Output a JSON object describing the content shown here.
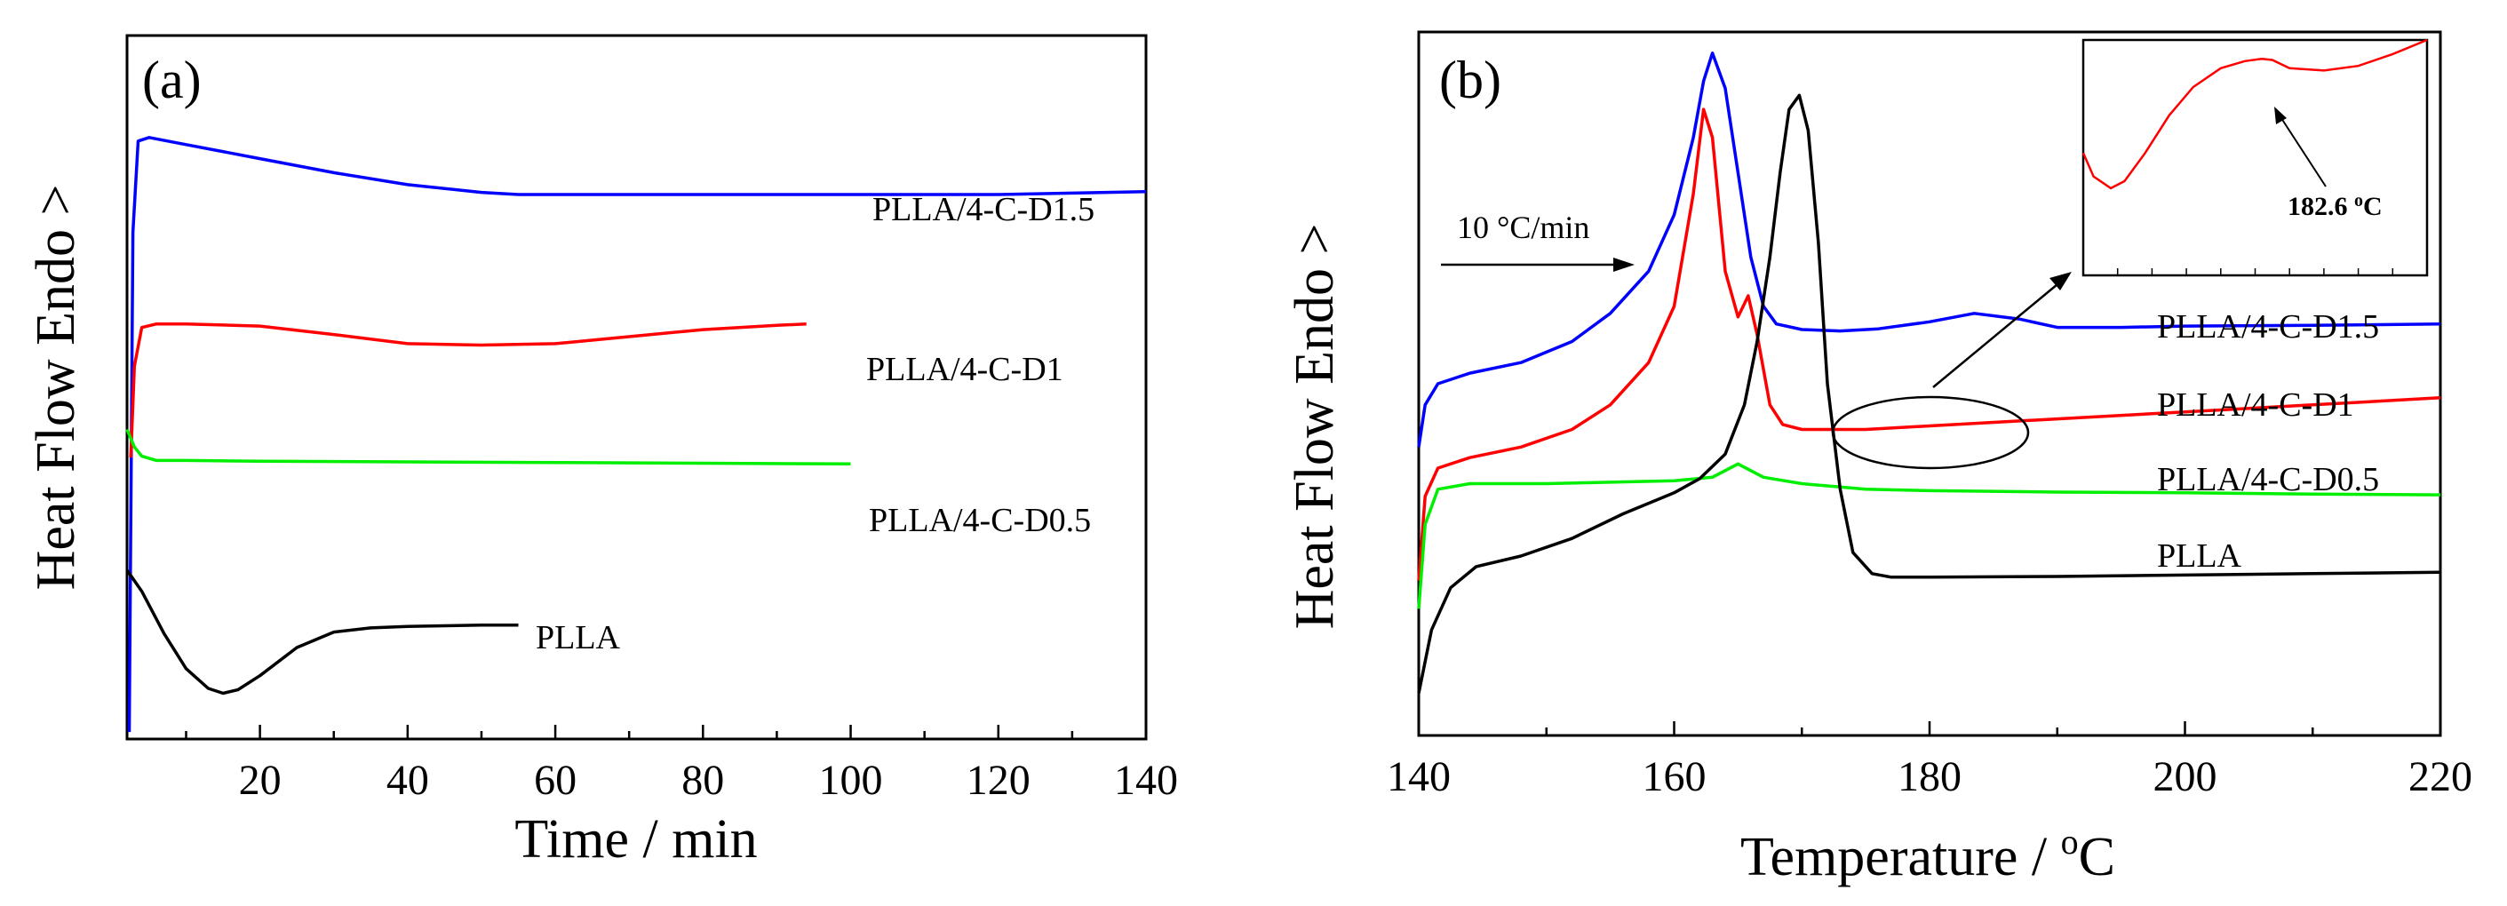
{
  "chart_data": [
    {
      "type": "line",
      "panel_label": "(a)",
      "xlabel": "Time / min",
      "ylabel": "Heat Flow Endo >",
      "xlim": [
        2,
        140
      ],
      "ylim": [
        0,
        100
      ],
      "xticks": [
        20,
        40,
        60,
        80,
        100,
        120,
        140
      ],
      "yticks_shown": false,
      "series": [
        {
          "name": "PLLA/4-C-D1.5",
          "color": "#0000ff",
          "x": [
            2.3,
            2.8,
            3.5,
            5,
            10,
            20,
            30,
            40,
            50,
            55,
            60,
            80,
            100,
            120,
            140
          ],
          "y": [
            1,
            72,
            85,
            85.5,
            84.5,
            82.5,
            80.5,
            78.8,
            77.7,
            77.4,
            77.4,
            77.4,
            77.4,
            77.4,
            77.8
          ]
        },
        {
          "name": "PLLA/4-C-D1",
          "color": "#ff0000",
          "x": [
            2.5,
            3,
            4,
            6,
            10,
            20,
            30,
            40,
            50,
            60,
            70,
            80,
            90,
            94
          ],
          "y": [
            40,
            53,
            58.5,
            59,
            59,
            58.7,
            57.5,
            56.2,
            56,
            56.2,
            57.2,
            58.2,
            58.8,
            59
          ]
        },
        {
          "name": "PLLA/4-C-D0.5",
          "color": "#00ee00",
          "x": [
            2,
            3,
            4,
            6,
            10,
            20,
            40,
            60,
            80,
            100
          ],
          "y": [
            44,
            41.5,
            40.2,
            39.6,
            39.6,
            39.5,
            39.4,
            39.3,
            39.2,
            39.1
          ]
        },
        {
          "name": "PLLA",
          "color": "#000000",
          "x": [
            2,
            4,
            7,
            10,
            13,
            15,
            17,
            20,
            25,
            30,
            35,
            40,
            45,
            50,
            55
          ],
          "y": [
            24,
            21,
            15,
            10,
            7.2,
            6.5,
            7,
            9,
            13,
            15.2,
            15.8,
            16,
            16.1,
            16.2,
            16.2
          ]
        }
      ],
      "labels": [
        "PLLA/4-C-D1.5",
        "PLLA/4-C-D1",
        "PLLA/4-C-D0.5",
        "PLLA"
      ]
    },
    {
      "type": "line",
      "panel_label": "(b)",
      "xlabel": "Temperature / ",
      "xlabel_unit_sup": "o",
      "xlabel_unit": "C",
      "ylabel": "Heat Flow Endo >",
      "xlim": [
        140,
        220
      ],
      "ylim": [
        0,
        100
      ],
      "xticks": [
        140,
        160,
        180,
        200,
        220
      ],
      "yticks_shown": false,
      "rate_annotation": "10 °C/min",
      "series": [
        {
          "name": "PLLA/4-C-D1.5",
          "color": "#0000ff",
          "x": [
            140,
            140.5,
            141.5,
            144,
            148,
            152,
            155,
            158,
            160,
            161.5,
            162.3,
            163,
            164,
            165,
            166,
            167,
            168,
            170,
            173,
            176,
            180,
            183.5,
            187,
            190,
            195,
            200,
            210,
            220
          ],
          "y": [
            41,
            47,
            50,
            51.5,
            53,
            56,
            60,
            66,
            74,
            85,
            93,
            97,
            92,
            80,
            68,
            61,
            58.5,
            57.7,
            57.5,
            57.8,
            58.8,
            60,
            59.2,
            58,
            58,
            58.2,
            58.3,
            58.5
          ]
        },
        {
          "name": "PLLA/4-C-D1",
          "color": "#ff0000",
          "x": [
            140,
            140.5,
            141.5,
            144,
            148,
            152,
            155,
            158,
            160,
            161.5,
            162.3,
            163,
            164,
            165,
            165.8,
            166.5,
            167.5,
            168.5,
            170,
            175,
            180,
            190,
            200,
            210,
            220
          ],
          "y": [
            22,
            34,
            38,
            39.5,
            41,
            43.5,
            47,
            53,
            61,
            77,
            89,
            85,
            66,
            59.5,
            62.5,
            57,
            47,
            44.2,
            43.5,
            43.5,
            44,
            45,
            46,
            47,
            48
          ]
        },
        {
          "name": "PLLA/4-C-D0.5",
          "color": "#00ee00",
          "x": [
            140,
            140.5,
            141.5,
            144,
            150,
            155,
            160,
            163,
            165,
            167,
            170,
            175,
            180,
            190,
            200,
            210,
            220
          ],
          "y": [
            18,
            30,
            35,
            35.8,
            35.8,
            36,
            36.2,
            36.7,
            38.6,
            36.7,
            35.8,
            35,
            34.8,
            34.6,
            34.5,
            34.3,
            34.2
          ]
        },
        {
          "name": "PLLA",
          "color": "#000000",
          "x": [
            140,
            141,
            142.5,
            144.5,
            148,
            152,
            156,
            160,
            162,
            164,
            165.5,
            166.5,
            167.5,
            168.3,
            169,
            169.8,
            170.5,
            171.3,
            172,
            173,
            174,
            175.5,
            177,
            180,
            190,
            200,
            210,
            220
          ],
          "y": [
            6,
            15,
            21,
            24,
            25.5,
            28,
            31.5,
            34.5,
            36.5,
            40,
            47,
            56,
            68,
            80,
            89,
            91,
            86,
            70,
            50,
            35,
            26,
            23,
            22.5,
            22.5,
            22.6,
            22.8,
            23,
            23.2
          ]
        }
      ],
      "labels": [
        "PLLA/4-C-D1.5",
        "PLLA/4-C-D1",
        "PLLA/4-C-D0.5",
        "PLLA"
      ],
      "inset": {
        "annotation": "182.6 ",
        "annotation_sup": "o",
        "annotation_unit": "C",
        "color": "#ff0000",
        "x": [
          0,
          3,
          8,
          12,
          18,
          25,
          32,
          40,
          47,
          52,
          55,
          60,
          70,
          80,
          90,
          100
        ],
        "y": [
          52,
          42,
          37,
          40,
          52,
          68,
          80,
          88,
          91,
          92,
          91.5,
          88,
          87,
          89,
          94,
          100
        ]
      }
    }
  ]
}
